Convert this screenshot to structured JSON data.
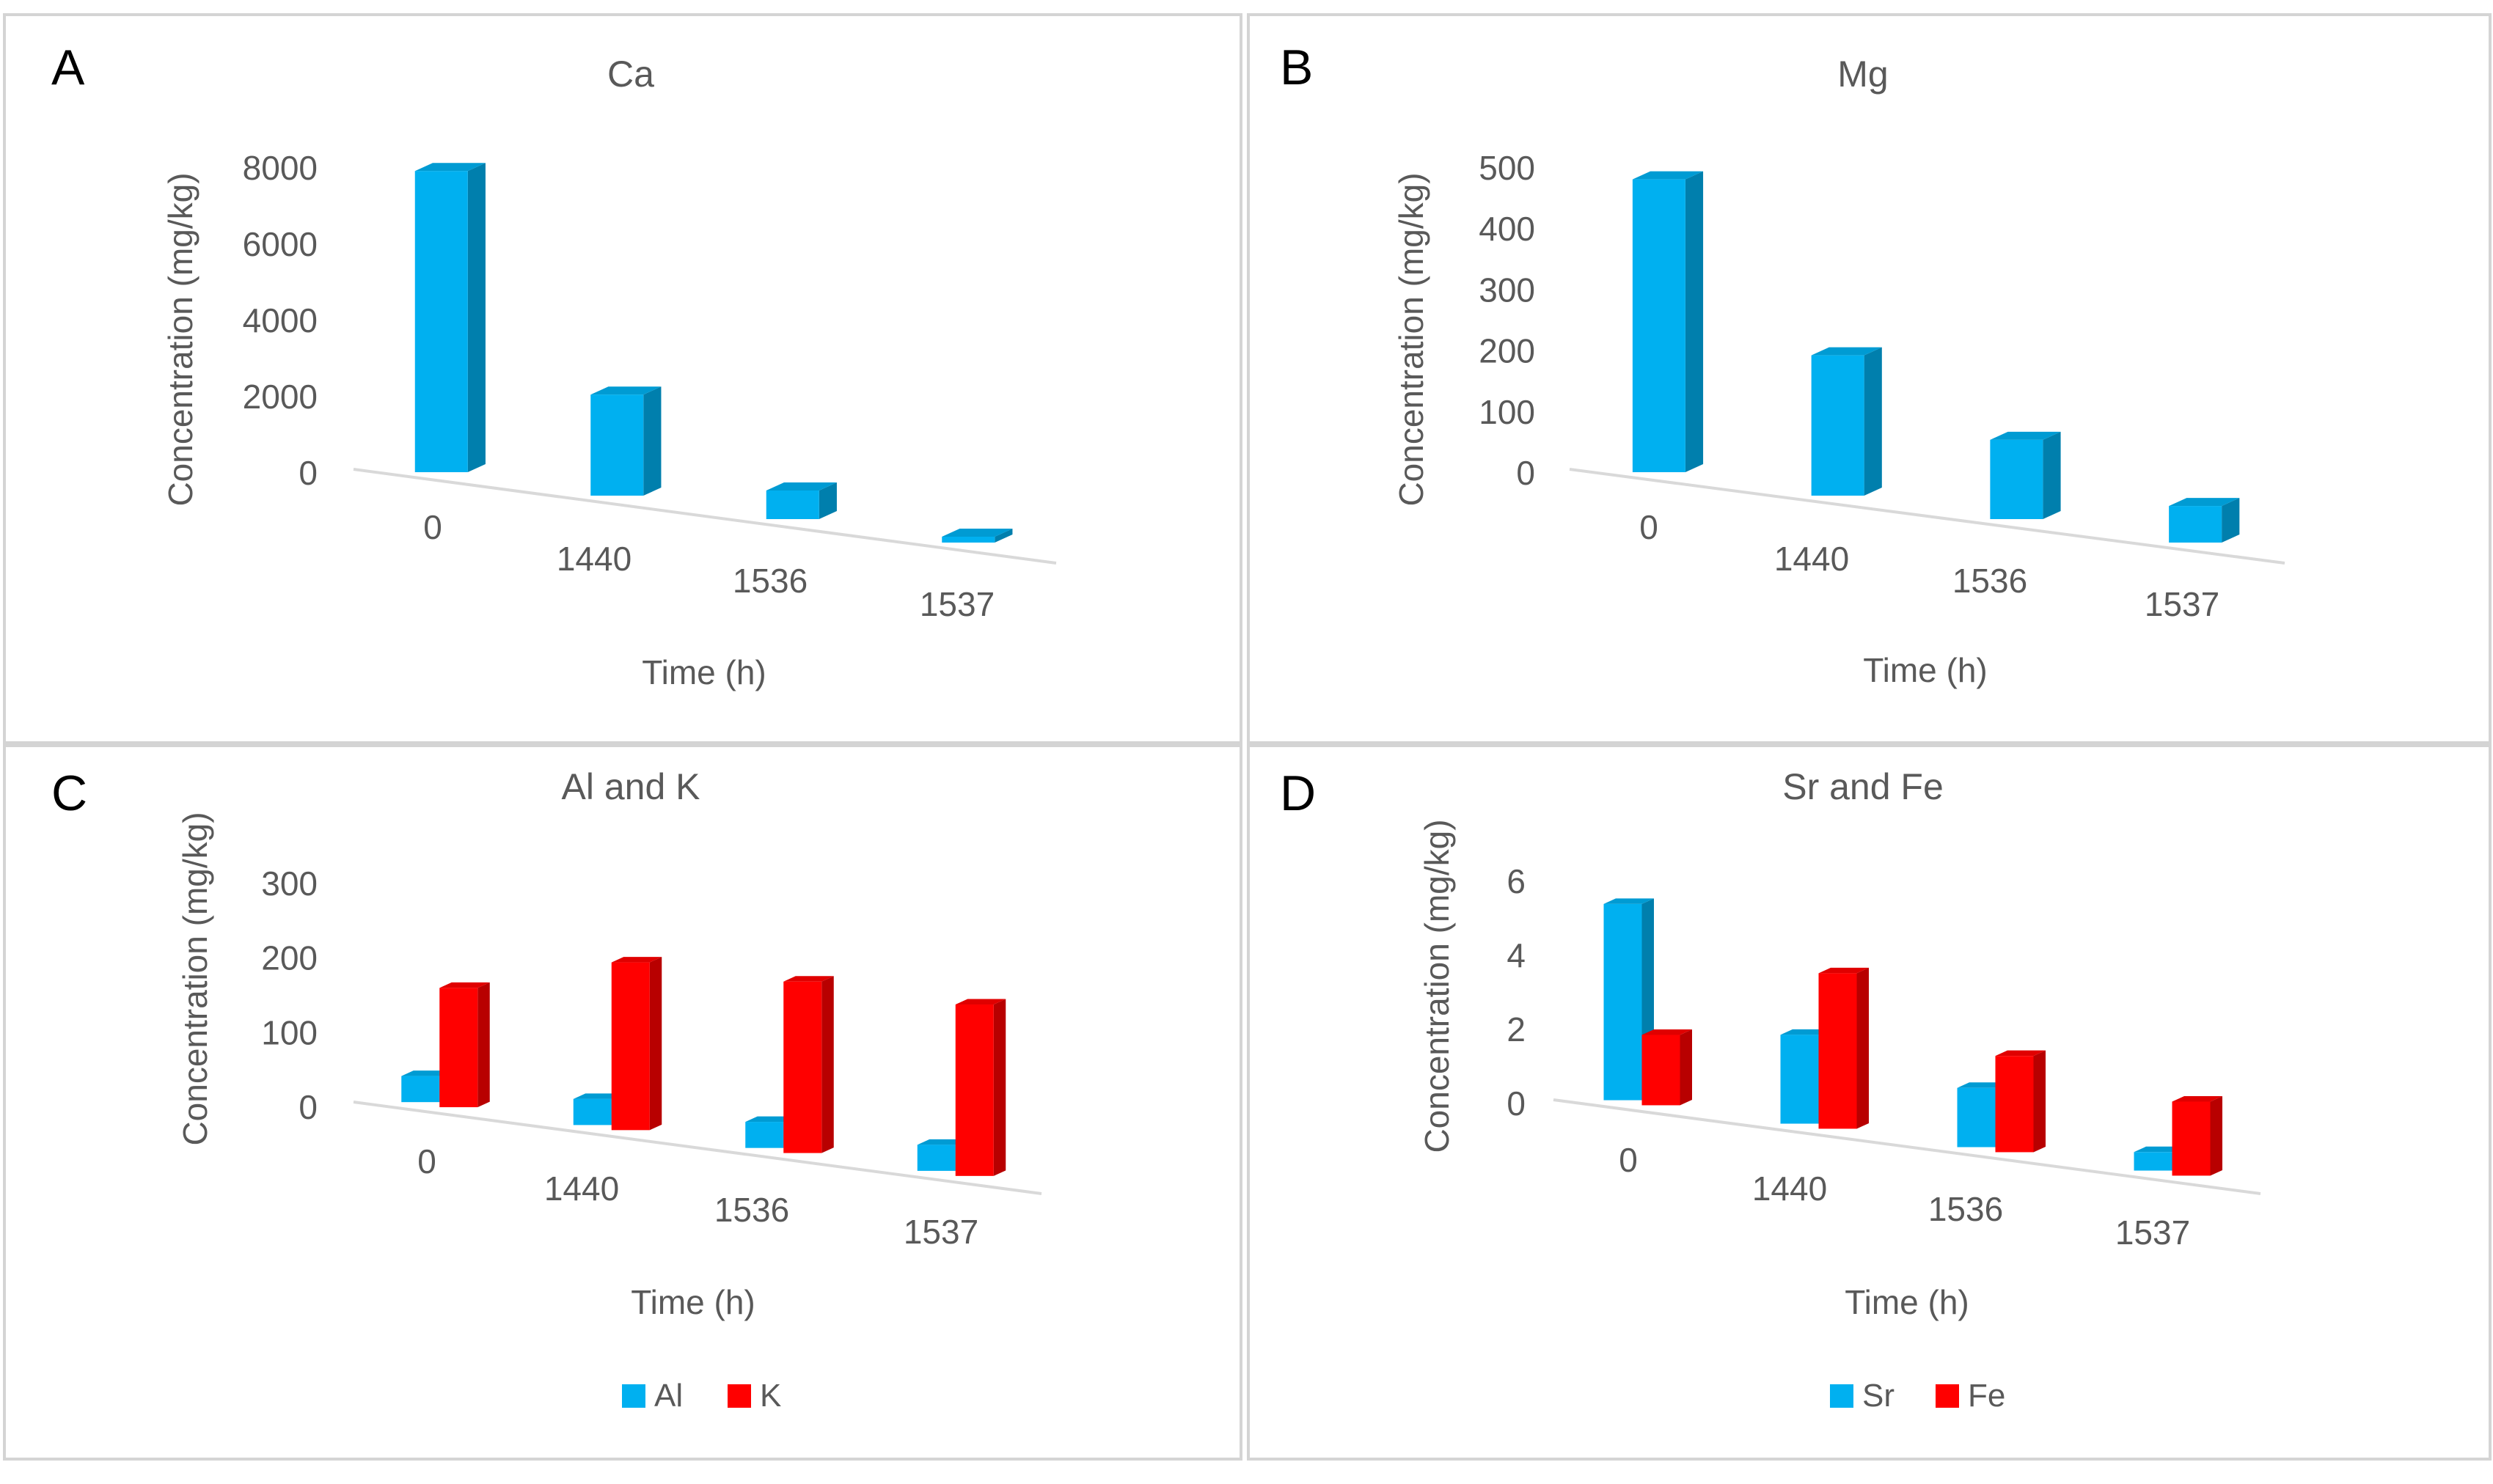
{
  "chart_data": [
    {
      "panel_label": "A",
      "type": "bar",
      "title": "Ca",
      "xlabel": "Time (h)",
      "ylabel": "Concentration (mg/kg)",
      "categories": [
        "0",
        "1440",
        "1536",
        "1537"
      ],
      "y_ticks": [
        "8000",
        "6000",
        "4000",
        "2000",
        "0"
      ],
      "ylim": [
        0,
        8000
      ],
      "series": [
        {
          "name": "Ca",
          "color": "#00b0f0",
          "values": [
            7900,
            2650,
            750,
            120
          ]
        }
      ],
      "legend": []
    },
    {
      "panel_label": "B",
      "type": "bar",
      "title": "Mg",
      "xlabel": "Time (h)",
      "ylabel": "Concentration (mg/kg)",
      "categories": [
        "0",
        "1440",
        "1536",
        "1537"
      ],
      "y_ticks": [
        "500",
        "400",
        "300",
        "200",
        "100",
        "0"
      ],
      "ylim": [
        0,
        500
      ],
      "series": [
        {
          "name": "Mg",
          "color": "#00b0f0",
          "values": [
            480,
            230,
            130,
            60
          ]
        }
      ],
      "legend": []
    },
    {
      "panel_label": "C",
      "type": "bar",
      "title": "Al and K",
      "xlabel": "Time (h)",
      "ylabel": "Concentration (mg/kg)",
      "categories": [
        "0",
        "1440",
        "1536",
        "1537"
      ],
      "y_ticks": [
        "300",
        "200",
        "100",
        "0"
      ],
      "ylim": [
        0,
        300
      ],
      "series": [
        {
          "name": "Al",
          "color": "#00b0f0",
          "values": [
            35,
            35,
            35,
            35
          ]
        },
        {
          "name": "K",
          "color": "#ff0000",
          "values": [
            160,
            225,
            230,
            230
          ]
        }
      ],
      "legend": [
        "Al",
        "K"
      ]
    },
    {
      "panel_label": "D",
      "type": "bar",
      "title": "Sr and Fe",
      "xlabel": "Time (h)",
      "ylabel": "Concentration (mg/kg)",
      "categories": [
        "0",
        "1440",
        "1536",
        "1537"
      ],
      "y_ticks": [
        "6",
        "4",
        "2",
        "0"
      ],
      "ylim": [
        0,
        6
      ],
      "series": [
        {
          "name": "Sr",
          "color": "#00b0f0",
          "values": [
            5.3,
            2.4,
            1.6,
            0.5
          ]
        },
        {
          "name": "Fe",
          "color": "#ff0000",
          "values": [
            1.9,
            4.2,
            2.6,
            2.0
          ]
        }
      ],
      "legend": [
        "Sr",
        "Fe"
      ]
    }
  ]
}
